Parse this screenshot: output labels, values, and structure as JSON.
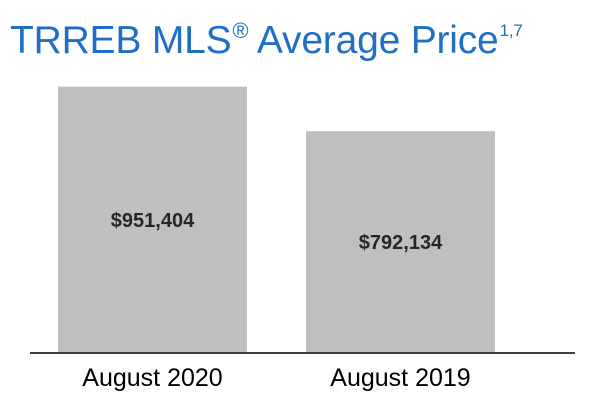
{
  "title": {
    "main": "TRREB MLS",
    "registered_mark": "®",
    "suffix": " Average Price",
    "superscript": "1,7"
  },
  "colors": {
    "title": "#1f6fc5",
    "bar": "#bfbfbf",
    "value_label": "#262626",
    "category_label": "#000000",
    "axis": "#404040"
  },
  "chart_data": {
    "type": "bar",
    "title": "TRREB MLS® Average Price 1,7",
    "categories": [
      "August 2020",
      "August 2019"
    ],
    "values": [
      951404,
      792134
    ],
    "value_labels": [
      "$951,404",
      "$792,134"
    ],
    "xlabel": "",
    "ylabel": "",
    "ylim": [
      0,
      1000000
    ],
    "grid": false,
    "legend": "none"
  }
}
